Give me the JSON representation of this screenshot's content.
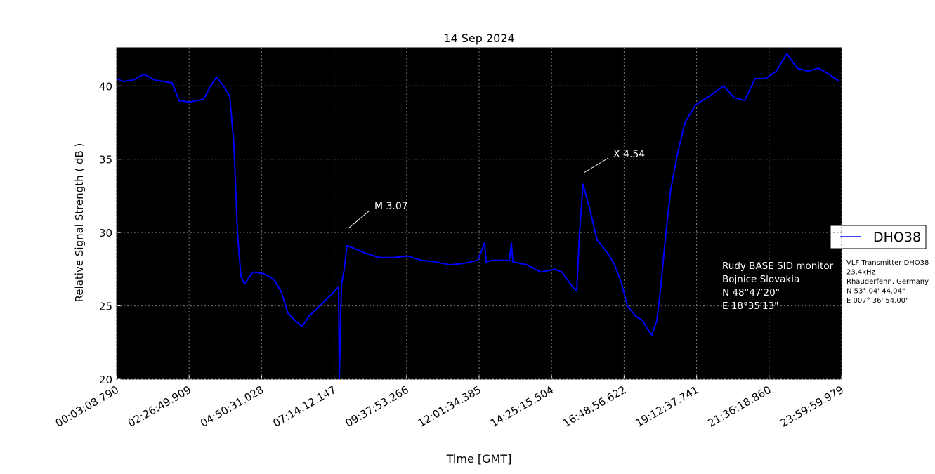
{
  "chart_data": {
    "type": "line",
    "title": "14 Sep 2024",
    "x_label": "Time [GMT]",
    "y_label": "Relative Signal Strength ( dB )",
    "xlim": [
      189,
      86400
    ],
    "ylim": [
      20,
      42.6
    ],
    "xticks": [
      {
        "value": 188.79,
        "label": "00:03:08.790"
      },
      {
        "value": 8809.909,
        "label": "02:26:49.909"
      },
      {
        "value": 17431.028,
        "label": "04:50:31.028"
      },
      {
        "value": 26052.147,
        "label": "07:14:12.147"
      },
      {
        "value": 34673.266,
        "label": "09:37:53.266"
      },
      {
        "value": 43294.385,
        "label": "12:01:34.385"
      },
      {
        "value": 51915.504,
        "label": "14:25:15.504"
      },
      {
        "value": 60536.622,
        "label": "16:48:56.622"
      },
      {
        "value": 69157.741,
        "label": "19:12:37.741"
      },
      {
        "value": 77778.86,
        "label": "21:36:18.860"
      },
      {
        "value": 86399.979,
        "label": "23:59:59.979"
      }
    ],
    "yticks": [
      20,
      25,
      30,
      35,
      40
    ],
    "grid": true,
    "legend": "right",
    "x": [
      189,
      941,
      2194,
      3447,
      4700,
      6789,
      7624,
      8877,
      10548,
      11383,
      12052,
      12887,
      13639,
      14140,
      14558,
      14976,
      15393,
      16396,
      17649,
      18902,
      19737,
      20573,
      21408,
      22244,
      23079,
      24332,
      25585,
      26588,
      26671,
      26922,
      27256,
      27590,
      28509,
      29762,
      31433,
      33104,
      34775,
      36445,
      38116,
      39787,
      41458,
      43129,
      43964,
      44131,
      44799,
      46888,
      47138,
      47306,
      48976,
      50647,
      52318,
      53153,
      54406,
      54908,
      55242,
      55660,
      56495,
      57330,
      58583,
      59419,
      60254,
      60923,
      61925,
      62760,
      63345,
      63846,
      64431,
      64849,
      65517,
      66102,
      66937,
      67773,
      69026,
      70697,
      72368,
      73621,
      74874,
      76127,
      77380,
      78633,
      79886,
      81139,
      82392,
      83645,
      84899,
      86152
    ],
    "series": [
      {
        "name": "DHO38",
        "color": "#0000ff",
        "values": [
          40.5,
          40.3,
          40.4,
          40.8,
          40.4,
          40.2,
          39.0,
          38.9,
          39.1,
          40.0,
          40.6,
          40.0,
          39.3,
          36,
          30,
          27,
          26.5,
          27.3,
          27.2,
          26.8,
          26,
          24.5,
          24.0,
          23.6,
          24.3,
          25.0,
          25.7,
          26.3,
          20,
          26.4,
          27.5,
          29.1,
          28.9,
          28.6,
          28.3,
          28.3,
          28.4,
          28.1,
          28.0,
          27.8,
          27.9,
          28.1,
          29.3,
          28.0,
          28.1,
          28.1,
          29.3,
          28.0,
          27.8,
          27.3,
          27.5,
          27.3,
          26.3,
          26.0,
          30,
          33.3,
          31.5,
          29.5,
          28.6,
          27.8,
          26.5,
          25.0,
          24.3,
          24.0,
          23.4,
          23.0,
          24.0,
          26,
          30,
          33,
          35.5,
          37.5,
          38.7,
          39.3,
          40.0,
          39.2,
          39.0,
          40.5,
          40.5,
          41.0,
          42.2,
          41.2,
          41.0,
          41.2,
          40.8,
          40.3
        ]
      }
    ],
    "annotations": [
      "M 3.07",
      "X 4.54"
    ],
    "station_note": [
      "Rudy BASE SID monitor",
      "Bojnice Slovakia",
      "N 48°47′20\"",
      "E 18°35′13\""
    ],
    "transmitter_note": [
      "VLF Transmitter DHO38",
      "23.4kHz",
      "Rhauderfehn, Germany",
      "N 53° 04' 44.04\"",
      "E 007° 36' 54.00\""
    ]
  }
}
